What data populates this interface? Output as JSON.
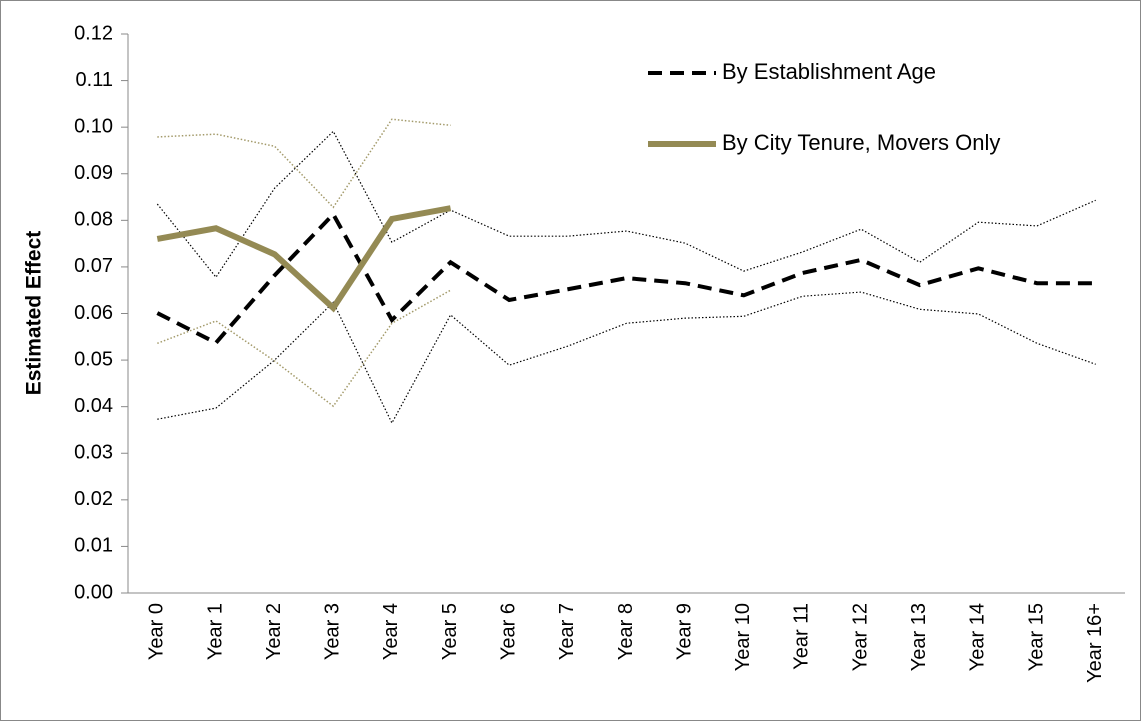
{
  "chart_data": {
    "type": "line",
    "y_label": "Estimated Effect",
    "categories": [
      "Year 0",
      "Year 1",
      "Year 2",
      "Year 3",
      "Year 4",
      "Year 5",
      "Year 6",
      "Year 7",
      "Year 8",
      "Year 9",
      "Year 10",
      "Year 11",
      "Year 12",
      "Year 13",
      "Year 14",
      "Year 15",
      "Year 16+"
    ],
    "ylim": [
      0,
      0.12
    ],
    "yticks": [
      {
        "value": 0,
        "label": "0.00"
      },
      {
        "value": 0.01,
        "label": "0.01"
      },
      {
        "value": 0.02,
        "label": "0.02"
      },
      {
        "value": 0.03,
        "label": "0.03"
      },
      {
        "value": 0.04,
        "label": "0.04"
      },
      {
        "value": 0.05,
        "label": "0.05"
      },
      {
        "value": 0.06,
        "label": "0.06"
      },
      {
        "value": 0.07,
        "label": "0.07"
      },
      {
        "value": 0.08,
        "label": "0.08"
      },
      {
        "value": 0.09,
        "label": "0.09"
      },
      {
        "value": 0.1,
        "label": "0.10"
      },
      {
        "value": 0.11,
        "label": "0.11"
      },
      {
        "value": 0.12,
        "label": "0.12"
      }
    ],
    "grid": false,
    "legend": "upper right",
    "series": [
      {
        "name": "By Establishment Age",
        "color": "#000000",
        "style": "dashed",
        "width": 4,
        "values": [
          0.0601,
          0.0537,
          0.0682,
          0.0813,
          0.0586,
          0.071,
          0.0629,
          0.0652,
          0.0676,
          0.0665,
          0.0639,
          0.0687,
          0.0715,
          0.0661,
          0.0697,
          0.0665,
          0.0665
        ]
      },
      {
        "color": "#000000",
        "style": "dotted",
        "width": 1.2,
        "values": [
          0.0835,
          0.0678,
          0.0869,
          0.0991,
          0.0753,
          0.0822,
          0.0766,
          0.0766,
          0.0777,
          0.0751,
          0.0691,
          0.0732,
          0.0781,
          0.071,
          0.0796,
          0.0788,
          0.0843
        ]
      },
      {
        "color": "#000000",
        "style": "dotted",
        "width": 1.2,
        "values": [
          0.0373,
          0.0397,
          0.05,
          0.0624,
          0.0365,
          0.0597,
          0.0489,
          0.053,
          0.0579,
          0.059,
          0.0594,
          0.0637,
          0.0646,
          0.0609,
          0.0599,
          0.0536,
          0.0491
        ]
      },
      {
        "name": "By City Tenure, Movers Only",
        "color": "#948a54",
        "style": "solid",
        "width": 6,
        "values": [
          0.076,
          0.0783,
          0.0727,
          0.0612,
          0.0803,
          0.0826,
          null,
          null,
          null,
          null,
          null,
          null,
          null,
          null,
          null,
          null,
          null
        ]
      },
      {
        "color": "#a39a6a",
        "style": "dotted",
        "width": 1.5,
        "values": [
          0.0979,
          0.0985,
          0.0959,
          0.0828,
          0.1017,
          0.1004,
          null,
          null,
          null,
          null,
          null,
          null,
          null,
          null,
          null,
          null,
          null
        ]
      },
      {
        "color": "#a39a6a",
        "style": "dotted",
        "width": 1.5,
        "values": [
          0.0536,
          0.0584,
          0.0498,
          0.0401,
          0.0579,
          0.065,
          null,
          null,
          null,
          null,
          null,
          null,
          null,
          null,
          null,
          null,
          null
        ]
      }
    ]
  }
}
